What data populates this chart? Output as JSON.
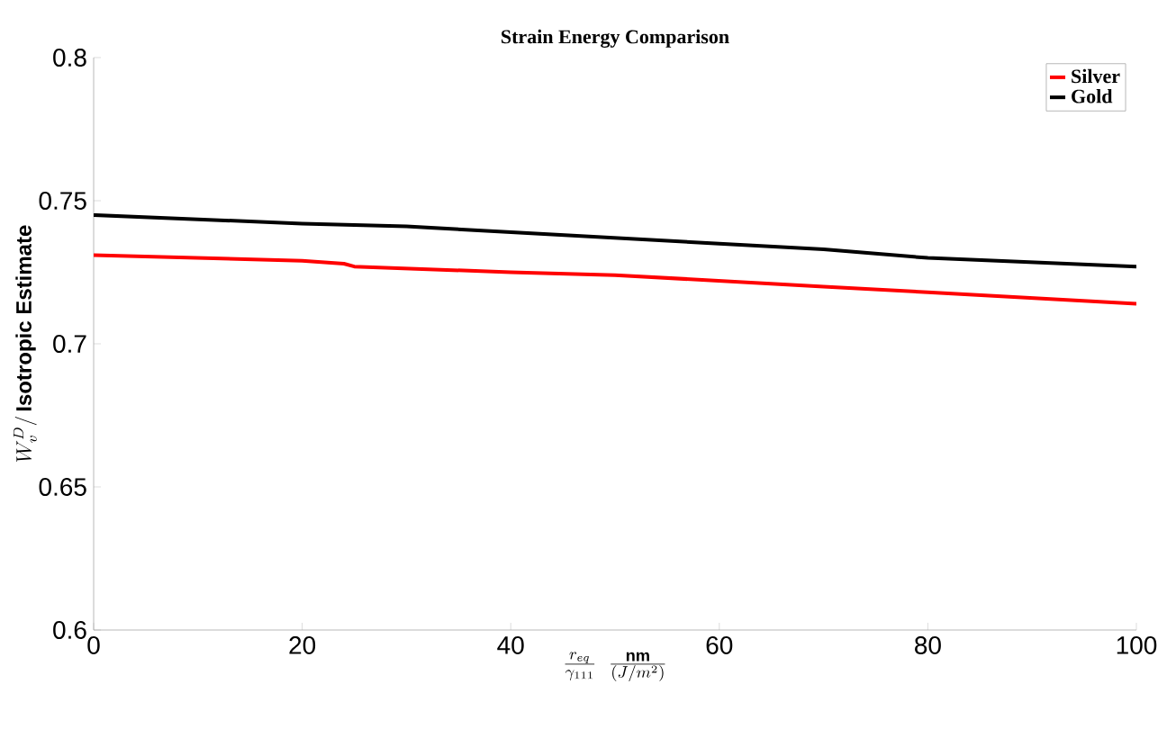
{
  "chart_data": {
    "type": "line",
    "title": "Strain Energy Comparison",
    "xlabel": "\\frac{r_{eq}}{\\gamma_{111}}\\;\\;\\frac{\\mathbf{nm}}{(J/m^2)}",
    "ylabel": "W_v^D/\\,\\mathbf{Isotropic\\ Estimate}",
    "xlim": [
      0,
      100
    ],
    "ylim": [
      0.6,
      0.8
    ],
    "xticks": [
      0,
      20,
      40,
      60,
      80,
      100
    ],
    "yticks": [
      0.6,
      0.65,
      0.7,
      0.75,
      0.8
    ],
    "legend": "top right",
    "grid": false,
    "marker": "none",
    "line_style": "solid",
    "series": [
      {
        "name": "Silver",
        "color": "#ff0000",
        "x": [
          0,
          20,
          24,
          25,
          40,
          50,
          60,
          70,
          80,
          100
        ],
        "values": [
          0.731,
          0.729,
          0.728,
          0.727,
          0.725,
          0.724,
          0.722,
          0.72,
          0.718,
          0.714
        ]
      },
      {
        "name": "Gold",
        "color": "#000000",
        "x": [
          0,
          20,
          30,
          40,
          50,
          60,
          70,
          80,
          100
        ],
        "values": [
          0.745,
          0.742,
          0.741,
          0.739,
          0.737,
          0.735,
          0.733,
          0.73,
          0.727
        ]
      }
    ]
  }
}
